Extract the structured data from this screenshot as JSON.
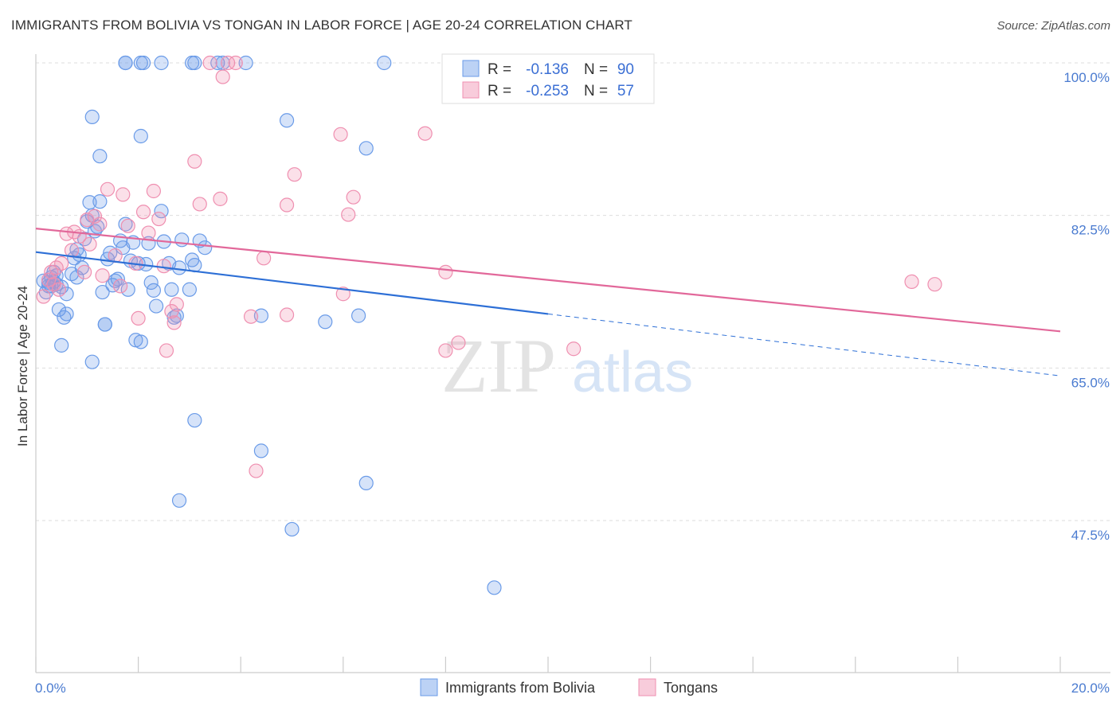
{
  "title": "IMMIGRANTS FROM BOLIVIA VS TONGAN IN LABOR FORCE | AGE 20-24 CORRELATION CHART",
  "source": "Source: ZipAtlas.com",
  "watermark": {
    "zip": "ZIP",
    "atlas": "atlas"
  },
  "chart_data": {
    "type": "scatter",
    "xlabel": "",
    "ylabel": "In Labor Force | Age 20-24",
    "xlim": [
      0,
      20
    ],
    "ylim": [
      32,
      102
    ],
    "x_tick_labels": [
      "0.0%",
      "20.0%"
    ],
    "y_ticks": [
      100,
      82.5,
      65,
      47.5
    ],
    "y_tick_labels": [
      "100.0%",
      "82.5%",
      "65.0%",
      "47.5%"
    ],
    "grid": true,
    "legend_position": "top-center",
    "colors": {
      "Immigrants from Bolivia": "#6a9be8",
      "Tongans": "#ef8fb0"
    },
    "stats": [
      {
        "series": "Immigrants from Bolivia",
        "r_label": "R =",
        "r_value": "-0.136",
        "n_label": "N =",
        "n_value": "90"
      },
      {
        "series": "Tongans",
        "r_label": "R =",
        "r_value": "-0.253",
        "n_label": "N =",
        "n_value": "57"
      }
    ],
    "series": [
      {
        "name": "Immigrants from Bolivia",
        "color": "#6a9be8",
        "trend": {
          "x0": 0,
          "y0": 78.3,
          "x1": 10,
          "y1": 71.2,
          "dash_to": 20,
          "dash_y": 64.1
        },
        "points": [
          [
            0.15,
            75.0
          ],
          [
            0.25,
            74.4
          ],
          [
            0.3,
            75.4
          ],
          [
            0.2,
            73.7
          ],
          [
            0.35,
            76.0
          ],
          [
            0.4,
            75.6
          ],
          [
            0.3,
            74.4
          ],
          [
            0.25,
            74.8
          ],
          [
            0.5,
            74.3
          ],
          [
            0.6,
            73.5
          ],
          [
            0.7,
            75.8
          ],
          [
            0.8,
            75.4
          ],
          [
            0.9,
            76.5
          ],
          [
            0.45,
            71.7
          ],
          [
            0.55,
            70.8
          ],
          [
            0.5,
            67.6
          ],
          [
            0.6,
            71.2
          ],
          [
            0.75,
            77.6
          ],
          [
            0.8,
            78.6
          ],
          [
            0.85,
            78.0
          ],
          [
            0.95,
            79.8
          ],
          [
            1.0,
            81.8
          ],
          [
            1.05,
            84.0
          ],
          [
            1.1,
            82.5
          ],
          [
            1.15,
            80.7
          ],
          [
            1.2,
            81.2
          ],
          [
            1.25,
            84.1
          ],
          [
            1.3,
            73.7
          ],
          [
            1.35,
            70.0
          ],
          [
            1.4,
            77.5
          ],
          [
            1.45,
            78.2
          ],
          [
            1.5,
            74.5
          ],
          [
            1.55,
            75.0
          ],
          [
            1.6,
            75.2
          ],
          [
            1.65,
            79.6
          ],
          [
            1.7,
            78.8
          ],
          [
            1.75,
            81.5
          ],
          [
            1.8,
            74.0
          ],
          [
            1.85,
            77.3
          ],
          [
            1.9,
            79.4
          ],
          [
            1.95,
            68.2
          ],
          [
            2.0,
            77.0
          ],
          [
            2.05,
            68.0
          ],
          [
            2.15,
            76.9
          ],
          [
            2.2,
            79.3
          ],
          [
            2.25,
            74.8
          ],
          [
            2.3,
            73.9
          ],
          [
            2.35,
            72.1
          ],
          [
            2.45,
            83.0
          ],
          [
            2.5,
            79.5
          ],
          [
            2.6,
            77.0
          ],
          [
            2.65,
            74.0
          ],
          [
            2.7,
            70.8
          ],
          [
            2.75,
            71.0
          ],
          [
            2.8,
            76.5
          ],
          [
            2.85,
            79.7
          ],
          [
            3.0,
            74.0
          ],
          [
            3.05,
            77.4
          ],
          [
            3.1,
            76.8
          ],
          [
            3.2,
            79.6
          ],
          [
            3.3,
            78.8
          ],
          [
            1.1,
            65.7
          ],
          [
            1.35,
            70.0
          ],
          [
            2.1,
            100.0
          ],
          [
            2.05,
            100.0
          ],
          [
            2.05,
            91.6
          ],
          [
            1.25,
            89.3
          ],
          [
            1.1,
            93.8
          ],
          [
            3.05,
            100.0
          ],
          [
            3.55,
            100.0
          ],
          [
            3.65,
            100.0
          ],
          [
            4.1,
            100.0
          ],
          [
            6.8,
            100.0
          ],
          [
            4.9,
            93.4
          ],
          [
            6.45,
            90.2
          ],
          [
            3.1,
            59.0
          ],
          [
            2.8,
            49.8
          ],
          [
            4.4,
            55.5
          ],
          [
            6.45,
            51.8
          ],
          [
            5.0,
            46.5
          ],
          [
            8.95,
            39.8
          ],
          [
            4.4,
            71.0
          ],
          [
            5.65,
            70.3
          ],
          [
            6.3,
            71.0
          ],
          [
            3.1,
            100.0
          ],
          [
            1.75,
            100.0
          ],
          [
            1.75,
            100.0
          ],
          [
            2.45,
            100.0
          ],
          [
            0.4,
            74.6
          ],
          [
            0.35,
            74.9
          ]
        ]
      },
      {
        "name": "Tongans",
        "color": "#ef8fb0",
        "trend": {
          "x0": 0,
          "y0": 81.0,
          "x1": 20,
          "y1": 69.2
        },
        "points": [
          [
            0.15,
            73.2
          ],
          [
            0.25,
            75.1
          ],
          [
            0.3,
            76.0
          ],
          [
            0.4,
            76.5
          ],
          [
            0.35,
            74.6
          ],
          [
            0.45,
            74.0
          ],
          [
            0.5,
            77.0
          ],
          [
            0.6,
            80.4
          ],
          [
            0.7,
            78.5
          ],
          [
            0.75,
            80.6
          ],
          [
            0.85,
            80.1
          ],
          [
            0.95,
            76.0
          ],
          [
            1.0,
            82.0
          ],
          [
            1.05,
            79.2
          ],
          [
            1.15,
            82.4
          ],
          [
            1.25,
            81.5
          ],
          [
            1.3,
            75.6
          ],
          [
            1.4,
            85.5
          ],
          [
            1.55,
            77.9
          ],
          [
            1.65,
            74.4
          ],
          [
            1.7,
            84.9
          ],
          [
            1.8,
            81.3
          ],
          [
            1.95,
            77.0
          ],
          [
            2.0,
            70.7
          ],
          [
            2.1,
            82.9
          ],
          [
            2.2,
            80.5
          ],
          [
            2.3,
            85.3
          ],
          [
            2.4,
            82.1
          ],
          [
            2.5,
            76.7
          ],
          [
            2.55,
            67.0
          ],
          [
            2.65,
            71.5
          ],
          [
            2.7,
            70.2
          ],
          [
            2.75,
            72.3
          ],
          [
            3.1,
            88.7
          ],
          [
            3.2,
            83.8
          ],
          [
            3.6,
            84.4
          ],
          [
            3.75,
            100.0
          ],
          [
            3.9,
            100.0
          ],
          [
            3.65,
            98.4
          ],
          [
            3.4,
            100.0
          ],
          [
            4.2,
            70.9
          ],
          [
            4.45,
            77.6
          ],
          [
            4.3,
            53.2
          ],
          [
            4.9,
            83.7
          ],
          [
            5.05,
            87.2
          ],
          [
            4.9,
            71.1
          ],
          [
            6.0,
            73.5
          ],
          [
            5.95,
            91.8
          ],
          [
            6.1,
            82.6
          ],
          [
            6.2,
            84.6
          ],
          [
            7.6,
            91.9
          ],
          [
            8.0,
            76.0
          ],
          [
            8.0,
            67.0
          ],
          [
            8.25,
            67.9
          ],
          [
            10.5,
            67.2
          ],
          [
            17.1,
            74.9
          ],
          [
            17.55,
            74.6
          ]
        ]
      }
    ]
  },
  "bottom_legend": [
    {
      "label": "Immigrants from Bolivia",
      "color": "#6a9be8"
    },
    {
      "label": "Tongans",
      "color": "#ef8fb0"
    }
  ]
}
